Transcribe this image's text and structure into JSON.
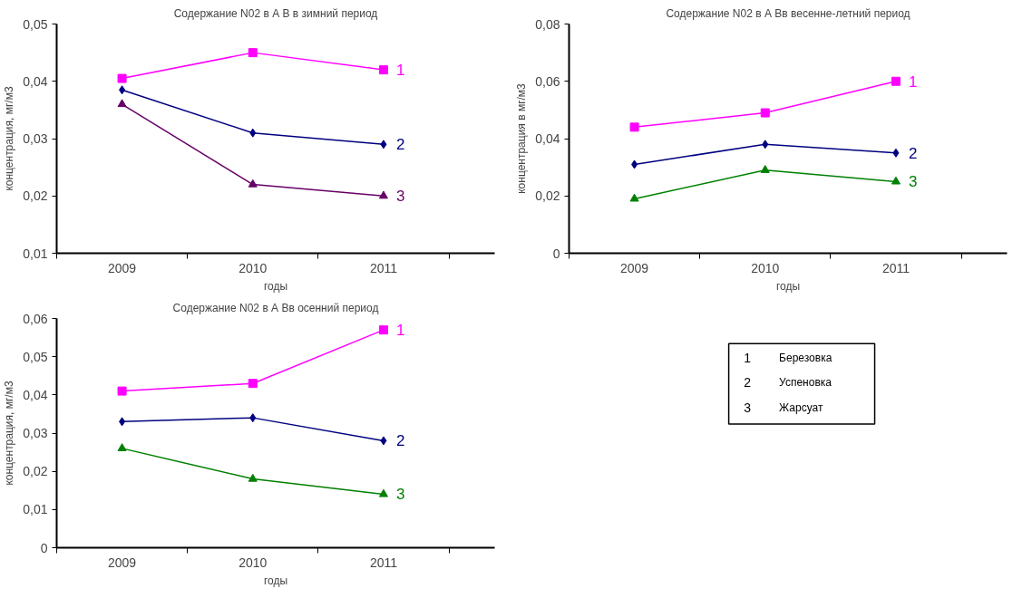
{
  "chart_data": [
    {
      "type": "line",
      "title": "Содержание N02 в А В в зимний период",
      "xlabel": "годы",
      "ylabel": "концентрация, мг/м3",
      "categories": [
        "2009",
        "2010",
        "2011"
      ],
      "ylim": [
        0.01,
        0.05
      ],
      "yticks": [
        {
          "value": 0.01,
          "label": "0,01"
        },
        {
          "value": 0.02,
          "label": "0,02"
        },
        {
          "value": 0.03,
          "label": "0,03"
        },
        {
          "value": 0.04,
          "label": "0,04"
        },
        {
          "value": 0.05,
          "label": "0,05"
        }
      ],
      "grid": false,
      "series": [
        {
          "name": "1",
          "color": "#ff00ff",
          "marker": "square",
          "values": [
            0.0405,
            0.045,
            0.042
          ]
        },
        {
          "name": "2",
          "color": "#000080",
          "marker": "diamond",
          "values": [
            0.0385,
            0.031,
            0.029
          ]
        },
        {
          "name": "3",
          "color": "#660066",
          "marker": "triangle",
          "values": [
            0.036,
            0.022,
            0.02
          ]
        }
      ]
    },
    {
      "type": "line",
      "title": "Содержание N02 в А Вв весенне-летний период",
      "xlabel": "годы",
      "ylabel": "концентрация в мг/м3",
      "categories": [
        "2009",
        "2010",
        "2011"
      ],
      "ylim": [
        0,
        0.08
      ],
      "yticks": [
        0,
        {
          "value": 0.02,
          "label": "0,02"
        },
        {
          "value": 0.04,
          "label": "0,04"
        },
        {
          "value": 0.06,
          "label": "0,06"
        },
        {
          "value": 0.08,
          "label": "0,08"
        }
      ],
      "grid": false,
      "series": [
        {
          "name": "1",
          "color": "#ff00ff",
          "marker": "square",
          "values": [
            0.044,
            0.049,
            0.06
          ]
        },
        {
          "name": "2",
          "color": "#000080",
          "marker": "diamond",
          "values": [
            0.031,
            0.038,
            0.035
          ]
        },
        {
          "name": "3",
          "color": "#008000",
          "marker": "triangle",
          "values": [
            0.019,
            0.029,
            0.025
          ]
        }
      ]
    },
    {
      "type": "line",
      "title": "Содержание N02 в А Вв осенний период",
      "xlabel": "годы",
      "ylabel": "концентрация, мг/м3",
      "categories": [
        "2009",
        "2010",
        "2011"
      ],
      "ylim": [
        0,
        0.06
      ],
      "yticks": [
        0,
        {
          "value": 0.01,
          "label": "0,01"
        },
        {
          "value": 0.02,
          "label": "0,02"
        },
        {
          "value": 0.03,
          "label": "0,03"
        },
        {
          "value": 0.04,
          "label": "0,04"
        },
        {
          "value": 0.05,
          "label": "0,05"
        },
        {
          "value": 0.06,
          "label": "0,06"
        }
      ],
      "grid": false,
      "series": [
        {
          "name": "1",
          "color": "#ff00ff",
          "marker": "square",
          "values": [
            0.041,
            0.043,
            0.057
          ]
        },
        {
          "name": "2",
          "color": "#000080",
          "marker": "diamond",
          "values": [
            0.033,
            0.034,
            0.028
          ]
        },
        {
          "name": "3",
          "color": "#008000",
          "marker": "triangle",
          "values": [
            0.026,
            0.018,
            0.014
          ]
        }
      ]
    },
    {
      "type": "other",
      "annotations": [
        "1",
        "Березовка",
        "2",
        "Успеновка",
        "3",
        "Жарсуат"
      ]
    }
  ]
}
